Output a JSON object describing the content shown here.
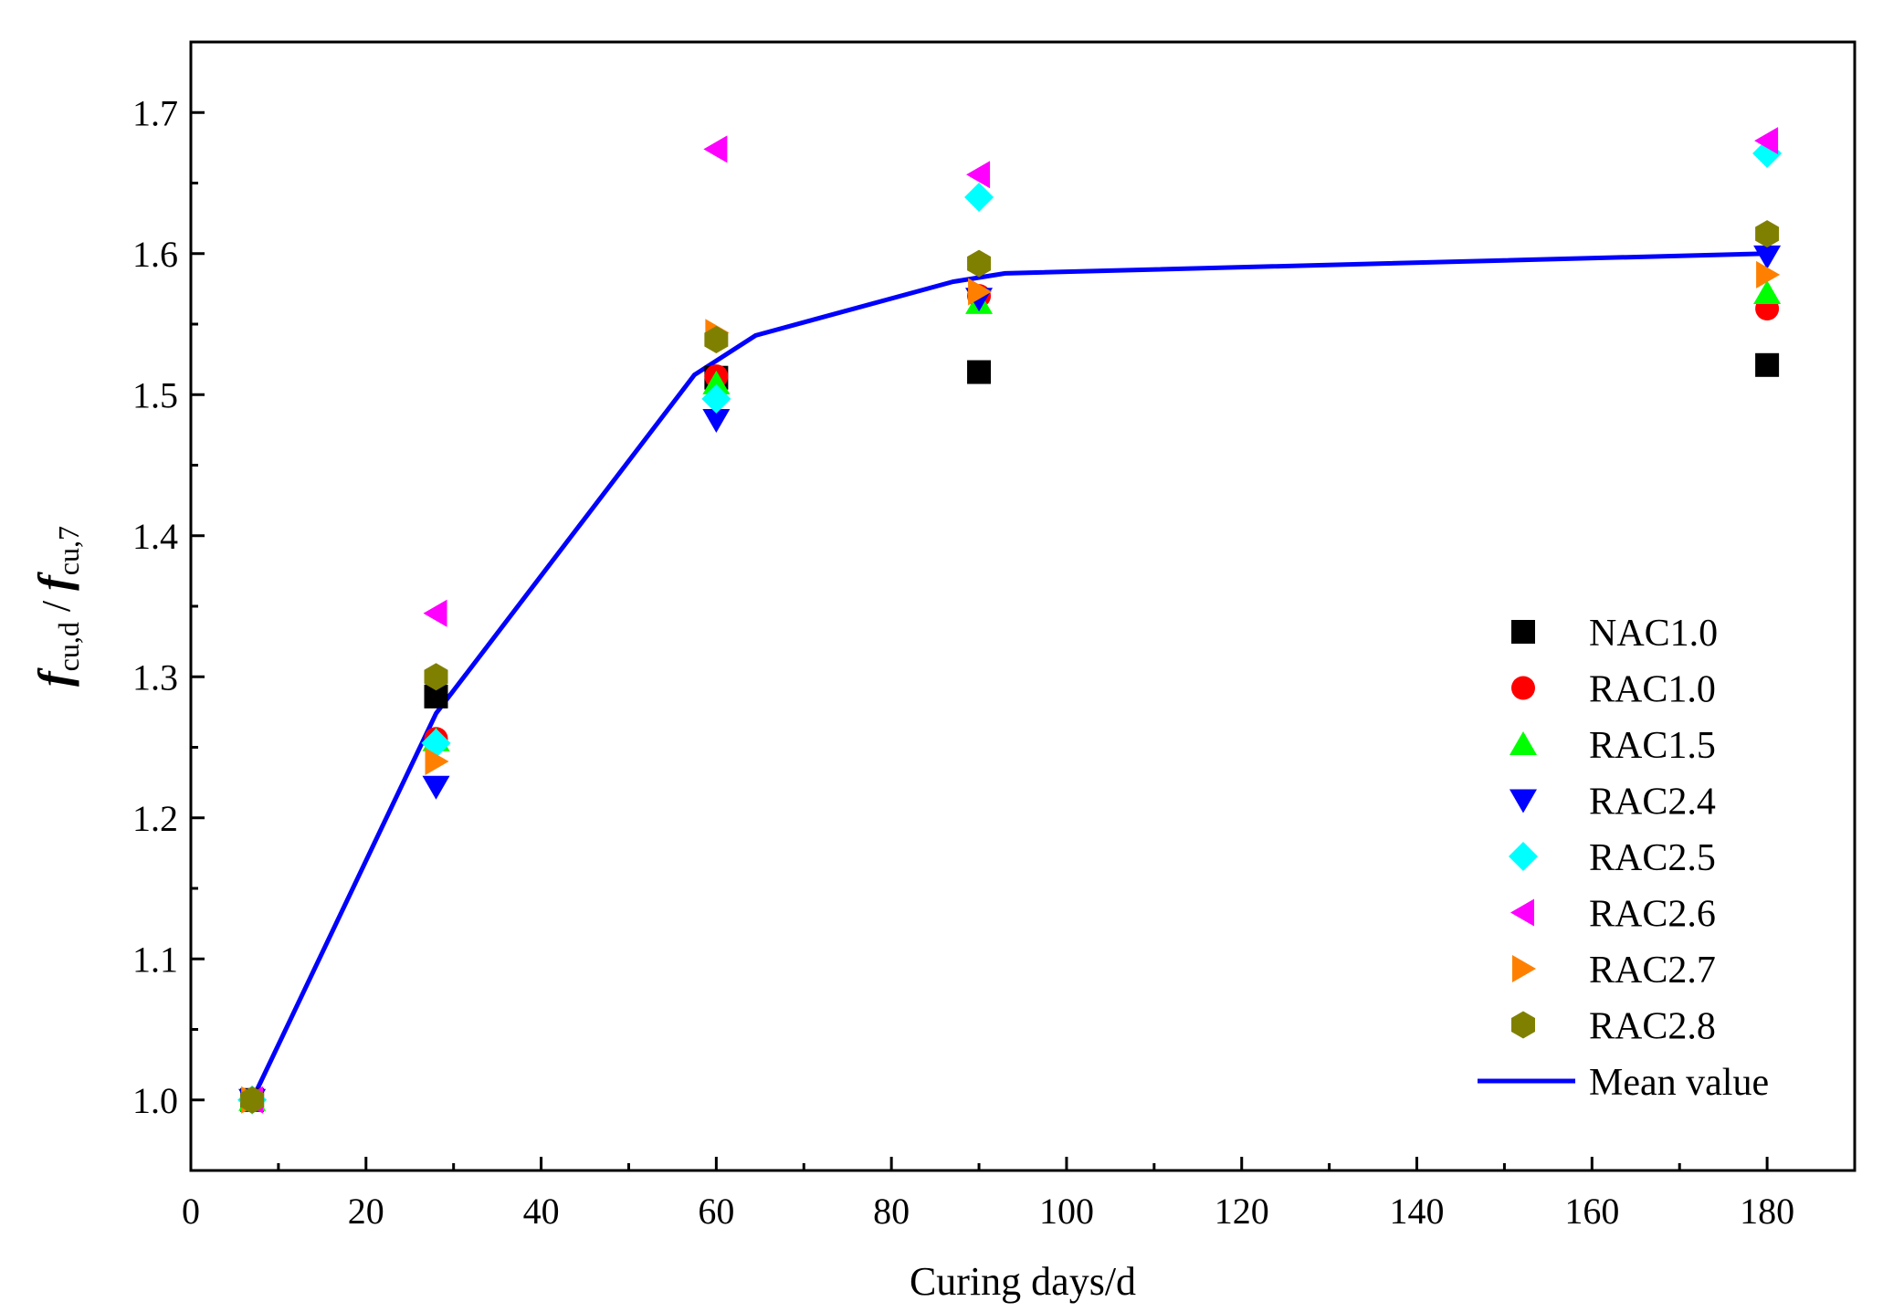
{
  "chart_data": {
    "type": "scatter",
    "title": "",
    "xlabel": "Curing days/d",
    "ylabel": {
      "main_numerator": "f",
      "sub_numerator": "cu,d",
      "separator": " / ",
      "main_denominator": "f",
      "sub_denominator": "cu,7"
    },
    "xlim": [
      0,
      190
    ],
    "ylim": [
      0.95,
      1.75
    ],
    "xticks": [
      0,
      20,
      40,
      60,
      80,
      100,
      120,
      140,
      160,
      180
    ],
    "xtick_labels": [
      "0",
      "20",
      "40",
      "60",
      "80",
      "100",
      "120",
      "140",
      "160",
      "180"
    ],
    "yticks": [
      1.0,
      1.1,
      1.2,
      1.3,
      1.4,
      1.5,
      1.6,
      1.7
    ],
    "ytick_labels": [
      "1.0",
      "1.1",
      "1.2",
      "1.3",
      "1.4",
      "1.5",
      "1.6",
      "1.7"
    ],
    "legend_position": "right",
    "series": [
      {
        "name": "NAC1.0",
        "marker": "square",
        "color": "#000000",
        "x": [
          7,
          28,
          60,
          90,
          180
        ],
        "y": [
          1.0,
          1.286,
          1.512,
          1.516,
          1.521
        ]
      },
      {
        "name": "RAC1.0",
        "marker": "circle",
        "color": "#ff0000",
        "x": [
          7,
          28,
          60,
          90,
          180
        ],
        "y": [
          1.0,
          1.256,
          1.513,
          1.57,
          1.561
        ]
      },
      {
        "name": "RAC1.5",
        "marker": "triangle-up",
        "color": "#00ff00",
        "x": [
          7,
          28,
          60,
          90,
          180
        ],
        "y": [
          1.0,
          1.255,
          1.508,
          1.565,
          1.572
        ]
      },
      {
        "name": "RAC2.4",
        "marker": "triangle-down",
        "color": "#0000ff",
        "x": [
          7,
          28,
          60,
          90,
          180
        ],
        "y": [
          1.0,
          1.222,
          1.482,
          1.568,
          1.598
        ]
      },
      {
        "name": "RAC2.5",
        "marker": "diamond",
        "color": "#00ffff",
        "x": [
          7,
          28,
          60,
          90,
          180
        ],
        "y": [
          1.0,
          1.253,
          1.497,
          1.64,
          1.671
        ]
      },
      {
        "name": "RAC2.6",
        "marker": "triangle-left",
        "color": "#ff00ff",
        "x": [
          7,
          28,
          60,
          90,
          180
        ],
        "y": [
          1.0,
          1.345,
          1.674,
          1.656,
          1.68
        ]
      },
      {
        "name": "RAC2.7",
        "marker": "triangle-right",
        "color": "#ff8000",
        "x": [
          7,
          28,
          60,
          90,
          180
        ],
        "y": [
          1.0,
          1.24,
          1.544,
          1.573,
          1.585
        ]
      },
      {
        "name": "RAC2.8",
        "marker": "hexagon",
        "color": "#808000",
        "x": [
          7,
          28,
          60,
          90,
          180
        ],
        "y": [
          1.0,
          1.3,
          1.539,
          1.593,
          1.614
        ]
      }
    ],
    "mean_line": {
      "name": "Mean value",
      "color": "#0000ff",
      "x": [
        7,
        28,
        57.5,
        64.5,
        87,
        93,
        180
      ],
      "y": [
        1.0,
        1.274,
        1.514,
        1.542,
        1.58,
        1.586,
        1.6
      ]
    }
  }
}
